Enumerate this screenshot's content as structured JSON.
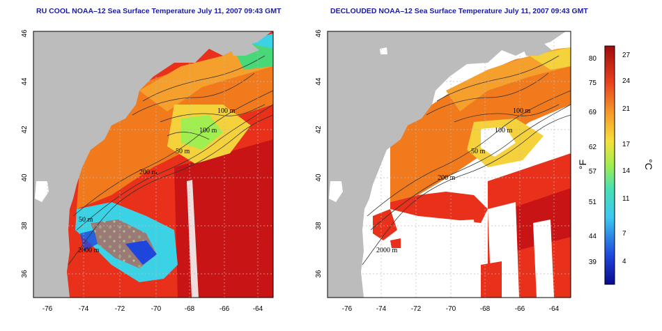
{
  "panels": [
    {
      "title": "RU COOL NOAA–12 Sea Surface Temperature July 11, 2007 09:43 GMT",
      "x_ticks": [
        "-76",
        "-74",
        "-72",
        "-70",
        "-68",
        "-66",
        "-64"
      ],
      "y_ticks": [
        "46",
        "44",
        "42",
        "40",
        "38",
        "36"
      ],
      "contour_labels": [
        "100 m",
        "100 m",
        "50 m",
        "200 m",
        "50 m",
        "2000 m"
      ]
    },
    {
      "title": "DECLOUDED NOAA–12 Sea Surface Temperature July 11, 2007 09:43 GMT",
      "x_ticks": [
        "-76",
        "-74",
        "-72",
        "-70",
        "-68",
        "-66",
        "-64"
      ],
      "y_ticks": [
        "46",
        "44",
        "42",
        "40",
        "38",
        "36"
      ],
      "contour_labels": [
        "100 m",
        "100 m",
        "50 m",
        "200 m",
        "2000 m"
      ]
    }
  ],
  "colorbar": {
    "fahrenheit_ticks": [
      "80",
      "75",
      "69",
      "62",
      "57",
      "51",
      "44",
      "39"
    ],
    "celsius_ticks": [
      "27",
      "24",
      "21",
      "17",
      "14",
      "11",
      "7",
      "4"
    ],
    "fahrenheit_unit": "°F",
    "celsius_unit": "°C"
  },
  "colors": {
    "land": "#bcbcbc",
    "warm": "#e8301a",
    "hot": "#c81414",
    "orange": "#f07a1c",
    "yellow": "#f5d23c",
    "green": "#48d878",
    "cyan": "#3cd2e6",
    "blue": "#1e46dc",
    "title": "#1a1aa8"
  }
}
